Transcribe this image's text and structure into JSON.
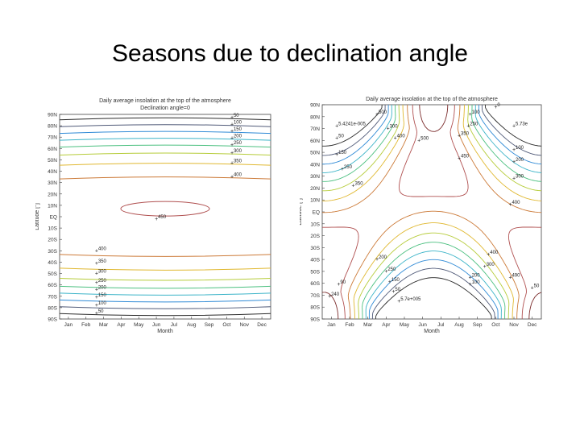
{
  "slide": {
    "title": "Seasons due to declination angle"
  },
  "chart_data": [
    {
      "type": "contour",
      "title": "Daily average insolation at the top of the atmosphere",
      "subtitle": "Declination angle=0",
      "xlabel": "Month",
      "ylabel": "Latitude [°]",
      "x_ticks": [
        "Jan",
        "Feb",
        "Mar",
        "Apr",
        "May",
        "Jun",
        "Jul",
        "Aug",
        "Sep",
        "Oct",
        "Nov",
        "Dec"
      ],
      "y_ticks": [
        "90N",
        "80N",
        "70N",
        "60N",
        "50N",
        "40N",
        "30N",
        "20N",
        "10N",
        "EQ",
        "10S",
        "20S",
        "30S",
        "40S",
        "50S",
        "60S",
        "70S",
        "80S",
        "90S"
      ],
      "ylim": [
        -90,
        90
      ],
      "grid": false,
      "contours": [
        {
          "level": 50,
          "latitude": 87
        },
        {
          "level": 100,
          "latitude": 81
        },
        {
          "level": 150,
          "latitude": 75
        },
        {
          "level": 200,
          "latitude": 69
        },
        {
          "level": 250,
          "latitude": 63
        },
        {
          "level": 300,
          "latitude": 56
        },
        {
          "level": 350,
          "latitude": 47
        },
        {
          "level": 400,
          "latitude": 35
        },
        {
          "level": 450,
          "latitude": 9
        }
      ],
      "labels": [
        {
          "text": "50",
          "month": 10.3,
          "lat": 87
        },
        {
          "text": "100",
          "month": 10.3,
          "lat": 81
        },
        {
          "text": "150",
          "month": 10.3,
          "lat": 75
        },
        {
          "text": "200",
          "month": 10.3,
          "lat": 69
        },
        {
          "text": "250",
          "month": 10.3,
          "lat": 63
        },
        {
          "text": "300",
          "month": 10.3,
          "lat": 56
        },
        {
          "text": "350",
          "month": 10.3,
          "lat": 47
        },
        {
          "text": "400",
          "month": 10.3,
          "lat": 35
        },
        {
          "text": "450",
          "month": 6.0,
          "lat": -2
        },
        {
          "text": "400",
          "month": 2.6,
          "lat": -30
        },
        {
          "text": "350",
          "month": 2.6,
          "lat": -41
        },
        {
          "text": "300",
          "month": 2.6,
          "lat": -50
        },
        {
          "text": "250",
          "month": 2.6,
          "lat": -58
        },
        {
          "text": "200",
          "month": 2.6,
          "lat": -64
        },
        {
          "text": "150",
          "month": 2.6,
          "lat": -71
        },
        {
          "text": "100",
          "month": 2.6,
          "lat": -78
        },
        {
          "text": "50",
          "month": 2.6,
          "lat": -85
        }
      ]
    },
    {
      "type": "contour",
      "title": "Daily average insolation at the top of the atmosphere",
      "xlabel": "Month",
      "ylabel": "Latitude [°]",
      "x_ticks": [
        "Jan",
        "Feb",
        "Mar",
        "Apr",
        "May",
        "Jun",
        "Jul",
        "Aug",
        "Sep",
        "Oct",
        "Nov",
        "Dec"
      ],
      "y_ticks": [
        "90N",
        "80N",
        "70N",
        "60N",
        "50N",
        "40N",
        "30N",
        "20N",
        "10N",
        "EQ",
        "10S",
        "20S",
        "30S",
        "40S",
        "50S",
        "60S",
        "70S",
        "80S",
        "90S"
      ],
      "ylim": [
        -90,
        90
      ],
      "grid": false,
      "contour_levels": [
        50,
        100,
        150,
        200,
        250,
        300,
        350,
        400,
        450,
        500
      ],
      "labels": [
        {
          "text": "5.4241e-005",
          "month": 1.3,
          "lat": 72
        },
        {
          "text": "50",
          "month": 1.3,
          "lat": 62
        },
        {
          "text": "150",
          "month": 1.3,
          "lat": 48
        },
        {
          "text": "250",
          "month": 1.6,
          "lat": 36
        },
        {
          "text": "350",
          "month": 2.2,
          "lat": 22
        },
        {
          "text": "500",
          "month": 3.5,
          "lat": 82
        },
        {
          "text": "300",
          "month": 4.1,
          "lat": 70
        },
        {
          "text": "400",
          "month": 4.5,
          "lat": 62
        },
        {
          "text": "500",
          "month": 5.8,
          "lat": 60
        },
        {
          "text": "100",
          "month": 8.6,
          "lat": 82
        },
        {
          "text": "250",
          "month": 8.5,
          "lat": 72
        },
        {
          "text": "350",
          "month": 8.0,
          "lat": 64
        },
        {
          "text": "450",
          "month": 8.0,
          "lat": 45
        },
        {
          "text": "0",
          "month": 10.0,
          "lat": 88
        },
        {
          "text": "5.73e",
          "month": 11.0,
          "lat": 72
        },
        {
          "text": "100",
          "month": 11.0,
          "lat": 52
        },
        {
          "text": "200",
          "month": 11.0,
          "lat": 42
        },
        {
          "text": "300",
          "month": 11.0,
          "lat": 28
        },
        {
          "text": "400",
          "month": 10.8,
          "lat": 6
        },
        {
          "text": "400",
          "month": 9.6,
          "lat": -36
        },
        {
          "text": "300",
          "month": 9.4,
          "lat": -46
        },
        {
          "text": "200",
          "month": 8.6,
          "lat": -55
        },
        {
          "text": "100",
          "month": 8.6,
          "lat": -61
        },
        {
          "text": "490",
          "month": 10.8,
          "lat": -55
        },
        {
          "text": "50",
          "month": 12.0,
          "lat": -64
        },
        {
          "text": "200",
          "month": 3.5,
          "lat": -40
        },
        {
          "text": "250",
          "month": 4.0,
          "lat": -50
        },
        {
          "text": "150",
          "month": 4.2,
          "lat": -59
        },
        {
          "text": "50",
          "month": 4.4,
          "lat": -67
        },
        {
          "text": "90",
          "month": 1.4,
          "lat": -61
        },
        {
          "text": "240",
          "month": 0.9,
          "lat": -71
        },
        {
          "text": "5.7e+005",
          "month": 4.7,
          "lat": -75
        }
      ]
    }
  ]
}
